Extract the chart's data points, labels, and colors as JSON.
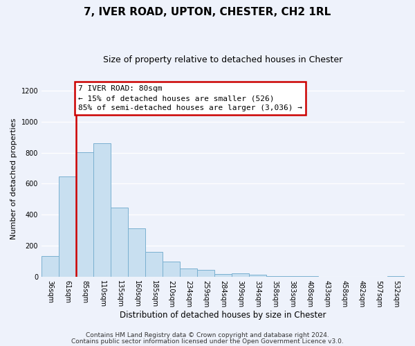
{
  "title": "7, IVER ROAD, UPTON, CHESTER, CH2 1RL",
  "subtitle": "Size of property relative to detached houses in Chester",
  "xlabel": "Distribution of detached houses by size in Chester",
  "ylabel": "Number of detached properties",
  "categories": [
    "36sqm",
    "61sqm",
    "85sqm",
    "110sqm",
    "135sqm",
    "160sqm",
    "185sqm",
    "210sqm",
    "234sqm",
    "259sqm",
    "284sqm",
    "309sqm",
    "334sqm",
    "358sqm",
    "383sqm",
    "408sqm",
    "433sqm",
    "458sqm",
    "482sqm",
    "507sqm",
    "532sqm"
  ],
  "values": [
    135,
    645,
    805,
    860,
    445,
    310,
    158,
    97,
    53,
    42,
    15,
    22,
    10,
    5,
    2,
    1,
    0,
    0,
    0,
    0,
    5
  ],
  "bar_color": "#c8dff0",
  "bar_edge_color": "#7ab0d0",
  "vline_x_index": 2,
  "vline_color": "#cc0000",
  "annotation_line1": "7 IVER ROAD: 80sqm",
  "annotation_line2": "← 15% of detached houses are smaller (526)",
  "annotation_line3": "85% of semi-detached houses are larger (3,036) →",
  "annotation_box_color": "#ffffff",
  "annotation_box_edge": "#cc0000",
  "ylim": [
    0,
    1260
  ],
  "yticks": [
    0,
    200,
    400,
    600,
    800,
    1000,
    1200
  ],
  "footer_line1": "Contains HM Land Registry data © Crown copyright and database right 2024.",
  "footer_line2": "Contains public sector information licensed under the Open Government Licence v3.0.",
  "background_color": "#eef2fb",
  "grid_color": "#ffffff",
  "title_fontsize": 11,
  "subtitle_fontsize": 9,
  "ylabel_fontsize": 8,
  "xlabel_fontsize": 8.5,
  "tick_fontsize": 7,
  "annotation_fontsize": 8,
  "footer_fontsize": 6.5
}
